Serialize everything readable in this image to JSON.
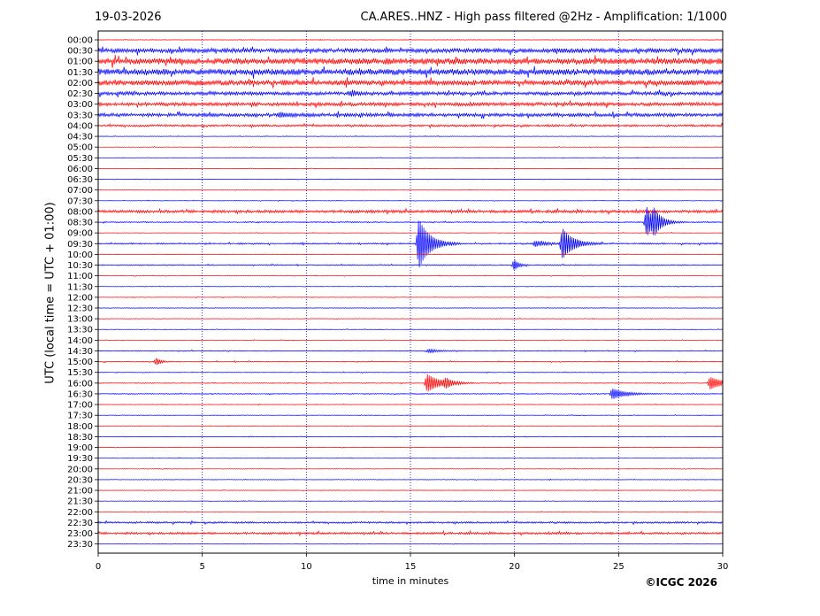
{
  "header": {
    "date": "19-03-2026",
    "title": "CA.ARES..HNZ - High pass filtered @2Hz - Amplification: 1/1000"
  },
  "footer": {
    "credit": "©ICGC 2026"
  },
  "chart_data": {
    "type": "line",
    "title": "CA.ARES..HNZ - High pass filtered @2Hz - Amplification: 1/1000",
    "xlabel": "time in minutes",
    "ylabel": "UTC (local time = UTC + 01:00)",
    "xlim": [
      0,
      30
    ],
    "xticks": [
      0,
      5,
      10,
      15,
      20,
      25,
      30
    ],
    "vertical_gridlines_at": [
      5,
      10,
      15,
      20,
      25
    ],
    "grid": "dotted vertical",
    "rows": [
      "00:00",
      "00:30",
      "01:00",
      "01:30",
      "02:00",
      "02:30",
      "03:00",
      "03:30",
      "04:00",
      "04:30",
      "05:00",
      "05:30",
      "06:00",
      "06:30",
      "07:00",
      "07:30",
      "08:00",
      "08:30",
      "09:00",
      "09:30",
      "10:00",
      "10:30",
      "11:00",
      "11:30",
      "12:00",
      "12:30",
      "13:00",
      "13:30",
      "14:00",
      "14:30",
      "15:00",
      "15:30",
      "16:00",
      "16:30",
      "17:00",
      "17:30",
      "18:00",
      "18:30",
      "19:00",
      "19:30",
      "20:00",
      "20:30",
      "21:00",
      "21:30",
      "22:00",
      "22:30",
      "23:00",
      "23:30"
    ],
    "colors": {
      "hour_rows": "#ff0000",
      "half_hour_rows": "#0000ff",
      "grid": "#0000aa"
    },
    "noise": [
      0.3,
      2.5,
      3.5,
      3.5,
      3.0,
      2.0,
      2.0,
      2.0,
      1.2,
      0.3,
      0.3,
      0.3,
      0.3,
      0.3,
      0.3,
      0.3,
      1.6,
      0.6,
      0.3,
      0.8,
      0.3,
      0.6,
      0.3,
      0.3,
      0.3,
      0.3,
      0.3,
      0.3,
      0.3,
      0.5,
      0.5,
      0.4,
      0.5,
      0.5,
      0.3,
      0.3,
      0.3,
      0.3,
      0.3,
      0.3,
      0.3,
      0.3,
      0.3,
      0.3,
      0.3,
      1.0,
      1.2,
      0.3
    ],
    "events": [
      {
        "row": "08:30",
        "t": 26.35,
        "amp": 17,
        "dur": 0.3
      },
      {
        "row": "08:30",
        "t": 26.7,
        "amp": 11,
        "dur": 0.4
      },
      {
        "row": "09:30",
        "t": 15.4,
        "amp": 28,
        "dur": 0.5
      },
      {
        "row": "09:30",
        "t": 22.3,
        "amp": 17,
        "dur": 0.5
      },
      {
        "row": "09:30",
        "t": 21.0,
        "amp": 3,
        "dur": 0.5
      },
      {
        "row": "10:30",
        "t": 20.0,
        "amp": 6,
        "dur": 0.2
      },
      {
        "row": "15:00",
        "t": 2.8,
        "amp": 4,
        "dur": 0.2
      },
      {
        "row": "16:00",
        "t": 15.8,
        "amp": 10,
        "dur": 0.6
      },
      {
        "row": "16:00",
        "t": 16.7,
        "amp": 4,
        "dur": 0.3
      },
      {
        "row": "16:00",
        "t": 29.4,
        "amp": 7,
        "dur": 0.6
      },
      {
        "row": "16:30",
        "t": 24.7,
        "amp": 6,
        "dur": 0.6
      },
      {
        "row": "14:30",
        "t": 15.9,
        "amp": 2,
        "dur": 0.4
      },
      {
        "row": "02:30",
        "t": 12.2,
        "amp": 3,
        "dur": 0.2
      },
      {
        "row": "03:30",
        "t": 8.7,
        "amp": 2,
        "dur": 0.5
      }
    ]
  }
}
